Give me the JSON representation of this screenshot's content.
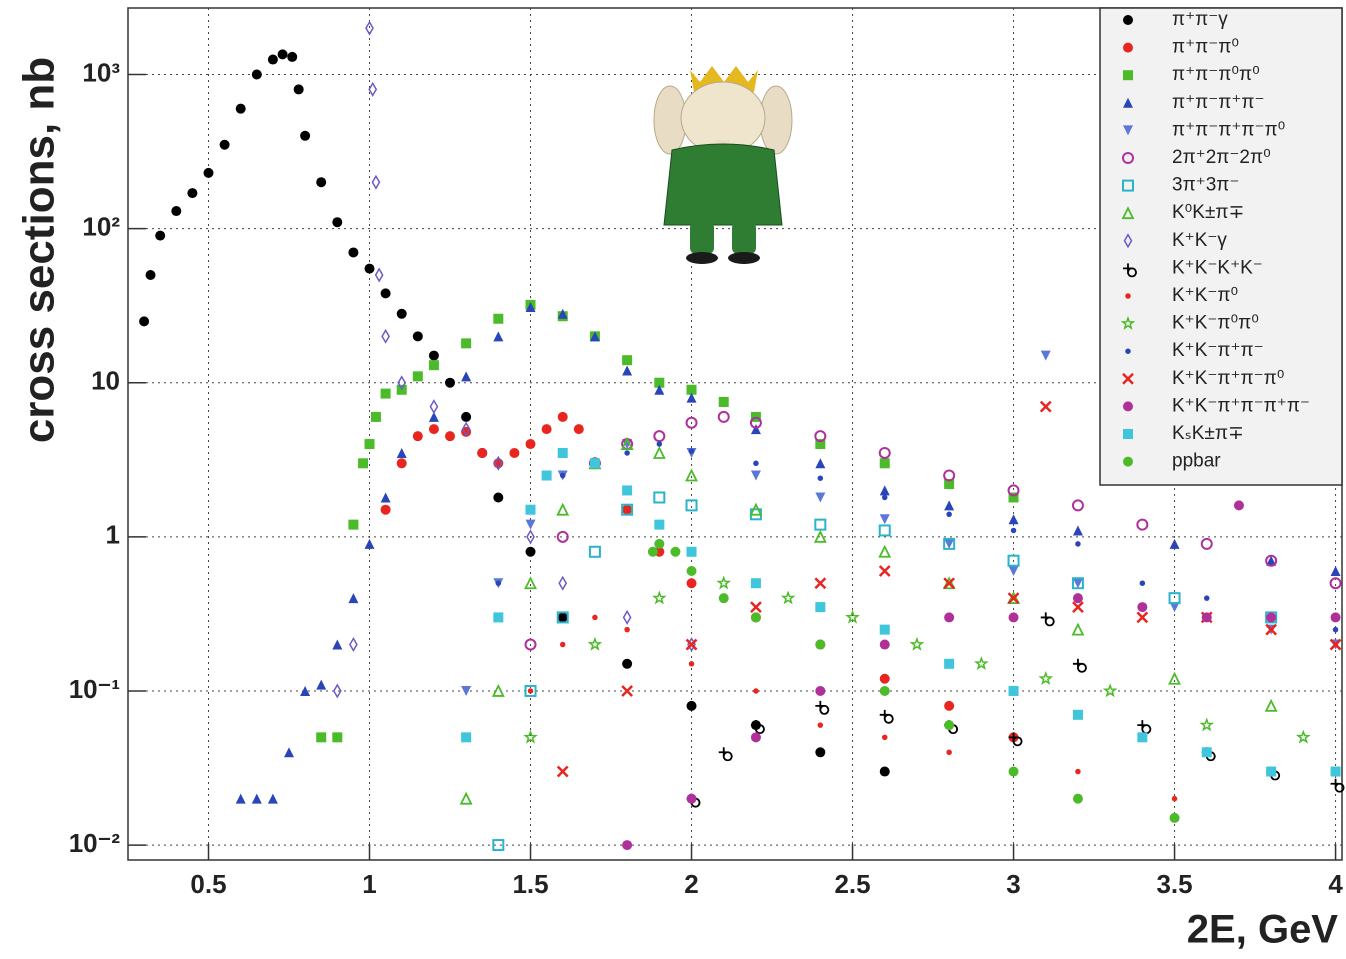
{
  "chart_data": {
    "type": "scatter",
    "x_label": "2E, GeV",
    "y_label": "cross sections, nb",
    "xlim": [
      0.25,
      4.02
    ],
    "ylim": [
      0.008,
      2700
    ],
    "log_y": true,
    "grid": true,
    "legend": "top-right",
    "xticks": [
      0.5,
      1,
      1.5,
      2,
      2.5,
      3,
      3.5,
      4
    ],
    "yticks": [
      {
        "value": 0.01,
        "label": "10⁻²"
      },
      {
        "value": 0.1,
        "label": "10⁻¹"
      },
      1,
      10,
      {
        "value": 100,
        "label": "10²"
      },
      {
        "value": 1000,
        "label": "10³"
      }
    ],
    "series": [
      {
        "name": "π⁺π⁻γ",
        "color": "#000000",
        "marker": "circle",
        "x": [
          0.3,
          0.32,
          0.35,
          0.4,
          0.45,
          0.5,
          0.55,
          0.6,
          0.65,
          0.7,
          0.73,
          0.76,
          0.78,
          0.8,
          0.85,
          0.9,
          0.95,
          1.0,
          1.05,
          1.1,
          1.15,
          1.2,
          1.25,
          1.3,
          1.35,
          1.4,
          1.5,
          1.6,
          1.8,
          2.0,
          2.2,
          2.4,
          2.6
        ],
        "values": [
          25,
          50,
          90,
          130,
          170,
          230,
          350,
          600,
          1000,
          1250,
          1350,
          1300,
          800,
          400,
          200,
          110,
          70,
          55,
          38,
          28,
          20,
          15,
          10,
          6,
          3.5,
          1.8,
          0.8,
          0.3,
          0.15,
          0.08,
          0.06,
          0.04,
          0.03
        ]
      },
      {
        "name": "π⁺π⁻π⁰",
        "color": "#e8251f",
        "marker": "circle",
        "x": [
          1.05,
          1.1,
          1.15,
          1.2,
          1.25,
          1.3,
          1.35,
          1.4,
          1.45,
          1.5,
          1.55,
          1.6,
          1.65,
          1.7,
          1.8,
          1.9,
          2.0,
          2.2,
          2.4,
          2.6,
          2.8,
          3.0
        ],
        "values": [
          1.5,
          3,
          4.5,
          5,
          4.5,
          4.8,
          3.5,
          3,
          3.5,
          4,
          5,
          6,
          5,
          3,
          1.5,
          0.8,
          0.5,
          0.3,
          0.2,
          0.12,
          0.08,
          0.05
        ]
      },
      {
        "name": "π⁺π⁻π⁰π⁰",
        "color": "#4cbb2a",
        "marker": "square",
        "x": [
          0.85,
          0.9,
          0.95,
          0.98,
          1.0,
          1.02,
          1.05,
          1.1,
          1.15,
          1.2,
          1.3,
          1.4,
          1.5,
          1.6,
          1.7,
          1.8,
          1.9,
          2.0,
          2.1,
          2.2,
          2.4,
          2.6,
          2.8,
          3.0
        ],
        "values": [
          0.05,
          0.05,
          1.2,
          3,
          4,
          6,
          8.5,
          9,
          11,
          13,
          18,
          26,
          32,
          27,
          20,
          14,
          10,
          9,
          7.5,
          6,
          4,
          3,
          2.2,
          1.8
        ]
      },
      {
        "name": "π⁺π⁻π⁺π⁻",
        "color": "#2a45b8",
        "marker": "triangle",
        "x": [
          0.6,
          0.65,
          0.7,
          0.75,
          0.8,
          0.85,
          0.9,
          0.95,
          1.0,
          1.05,
          1.1,
          1.2,
          1.3,
          1.4,
          1.5,
          1.6,
          1.7,
          1.8,
          1.9,
          2.0,
          2.2,
          2.4,
          2.6,
          2.8,
          3.0,
          3.2,
          3.5,
          3.8,
          4.0
        ],
        "values": [
          0.02,
          0.02,
          0.02,
          0.04,
          0.1,
          0.11,
          0.2,
          0.4,
          0.9,
          1.8,
          3.5,
          6,
          11,
          20,
          31,
          28,
          20,
          12,
          9,
          8,
          5,
          3,
          2,
          1.6,
          1.3,
          1.1,
          0.9,
          0.7,
          0.6
        ]
      },
      {
        "name": "π⁺π⁻π⁺π⁻π⁰",
        "color": "#5b78d8",
        "marker": "triangle-down",
        "x": [
          1.3,
          1.4,
          1.5,
          1.6,
          1.8,
          2.0,
          2.2,
          2.4,
          2.6,
          2.8,
          3.0,
          3.1,
          3.2,
          3.5,
          3.8,
          4.0
        ],
        "values": [
          0.1,
          0.5,
          1.2,
          2.5,
          4,
          3.5,
          2.5,
          1.8,
          1.3,
          0.9,
          0.6,
          15,
          0.5,
          0.35,
          0.25,
          0.2
        ]
      },
      {
        "name": "2π⁺2π⁻2π⁰",
        "color": "#b0309a",
        "marker": "circle-open",
        "x": [
          1.5,
          1.6,
          1.7,
          1.8,
          1.9,
          2.0,
          2.1,
          2.2,
          2.4,
          2.6,
          2.8,
          3.0,
          3.2,
          3.4,
          3.6,
          3.8,
          4.0
        ],
        "values": [
          0.2,
          1,
          3,
          4,
          4.5,
          5.5,
          6,
          5.5,
          4.5,
          3.5,
          2.5,
          2,
          1.6,
          1.2,
          0.9,
          0.7,
          0.5
        ]
      },
      {
        "name": "3π⁺3π⁻",
        "color": "#2ab3c9",
        "marker": "square-open",
        "x": [
          1.4,
          1.5,
          1.6,
          1.7,
          1.8,
          1.9,
          2.0,
          2.2,
          2.4,
          2.6,
          2.8,
          3.0,
          3.2,
          3.5,
          3.8
        ],
        "values": [
          0.01,
          0.1,
          0.3,
          0.8,
          1.5,
          1.8,
          1.6,
          1.4,
          1.2,
          1.1,
          0.9,
          0.7,
          0.5,
          0.4,
          0.3
        ]
      },
      {
        "name": "K⁰K±π∓",
        "color": "#4cbb2a",
        "marker": "triangle-open",
        "x": [
          1.3,
          1.4,
          1.5,
          1.6,
          1.7,
          1.8,
          1.9,
          2.0,
          2.2,
          2.4,
          2.6,
          2.8,
          3.0,
          3.2,
          3.5,
          3.8
        ],
        "values": [
          0.02,
          0.1,
          0.5,
          1.5,
          3,
          4,
          3.5,
          2.5,
          1.5,
          1,
          0.8,
          0.5,
          0.4,
          0.25,
          0.12,
          0.08
        ]
      },
      {
        "name": "K⁺K⁻γ",
        "color": "#6a5bc8",
        "marker": "diamond-open",
        "x": [
          0.9,
          0.95,
          1.0,
          1.01,
          1.02,
          1.03,
          1.05,
          1.1,
          1.2,
          1.3,
          1.4,
          1.5,
          1.6,
          1.8,
          2.0
        ],
        "values": [
          0.1,
          0.2,
          2000,
          800,
          200,
          50,
          20,
          10,
          7,
          5,
          3,
          1,
          0.5,
          0.3,
          0.2
        ]
      },
      {
        "name": "K⁺K⁻K⁺K⁻",
        "color": "#000000",
        "marker": "cross-open",
        "x": [
          2.0,
          2.1,
          2.2,
          2.4,
          2.6,
          2.8,
          3.0,
          3.1,
          3.2,
          3.4,
          3.6,
          3.8,
          4.0
        ],
        "values": [
          0.02,
          0.04,
          0.06,
          0.08,
          0.07,
          0.06,
          0.05,
          0.3,
          0.15,
          0.06,
          0.04,
          0.03,
          0.025
        ]
      },
      {
        "name": "K⁺K⁻π⁰",
        "color": "#e8251f",
        "marker": "dot",
        "x": [
          1.5,
          1.6,
          1.7,
          1.8,
          2.0,
          2.2,
          2.4,
          2.6,
          2.8,
          3.0,
          3.2,
          3.5
        ],
        "values": [
          0.1,
          0.2,
          0.3,
          0.25,
          0.15,
          0.1,
          0.06,
          0.05,
          0.04,
          0.03,
          0.03,
          0.02
        ]
      },
      {
        "name": "K⁺K⁻π⁰π⁰",
        "color": "#4cbb2a",
        "marker": "star",
        "x": [
          1.5,
          1.7,
          1.9,
          2.1,
          2.3,
          2.5,
          2.7,
          2.9,
          3.1,
          3.3,
          3.6,
          3.9
        ],
        "values": [
          0.05,
          0.2,
          0.4,
          0.5,
          0.4,
          0.3,
          0.2,
          0.15,
          0.12,
          0.1,
          0.06,
          0.05
        ]
      },
      {
        "name": "K⁺K⁻π⁺π⁻",
        "color": "#2a45b8",
        "marker": "dot",
        "x": [
          1.4,
          1.5,
          1.6,
          1.7,
          1.8,
          1.9,
          2.0,
          2.2,
          2.4,
          2.6,
          2.8,
          3.0,
          3.2,
          3.4,
          3.6,
          3.8,
          4.0
        ],
        "values": [
          0.5,
          1.5,
          2.5,
          3,
          3.5,
          4,
          3.6,
          3,
          2.4,
          1.8,
          1.4,
          1.1,
          0.9,
          0.5,
          0.4,
          0.3,
          0.25
        ]
      },
      {
        "name": "K⁺K⁻π⁺π⁻π⁰",
        "color": "#e8251f",
        "marker": "x",
        "x": [
          1.6,
          1.8,
          2.0,
          2.2,
          2.4,
          2.6,
          2.8,
          3.0,
          3.1,
          3.2,
          3.4,
          3.6,
          3.8,
          4.0
        ],
        "values": [
          0.03,
          0.1,
          0.2,
          0.35,
          0.5,
          0.6,
          0.5,
          0.4,
          7,
          0.35,
          0.3,
          0.3,
          0.25,
          0.2
        ]
      },
      {
        "name": "K⁺K⁻π⁺π⁻π⁺π⁻",
        "color": "#b0309a",
        "marker": "circle",
        "x": [
          1.8,
          2.0,
          2.2,
          2.4,
          2.6,
          2.8,
          3.0,
          3.2,
          3.4,
          3.6,
          3.7,
          3.8,
          4.0
        ],
        "values": [
          0.01,
          0.02,
          0.05,
          0.1,
          0.2,
          0.3,
          0.3,
          0.4,
          0.35,
          0.3,
          1.6,
          0.3,
          0.3
        ]
      },
      {
        "name": "KₛK±π∓",
        "color": "#3fc6dc",
        "marker": "square",
        "x": [
          1.3,
          1.4,
          1.5,
          1.55,
          1.6,
          1.7,
          1.8,
          1.9,
          2.0,
          2.2,
          2.4,
          2.6,
          2.8,
          3.0,
          3.2,
          3.4,
          3.6,
          3.8,
          4.0
        ],
        "values": [
          0.05,
          0.3,
          1.5,
          2.5,
          3.5,
          3,
          2,
          1.2,
          0.8,
          0.5,
          0.35,
          0.25,
          0.15,
          0.1,
          0.07,
          0.05,
          0.04,
          0.03,
          0.03
        ]
      },
      {
        "name": "ppbar",
        "color": "#4cbb2a",
        "marker": "circle",
        "x": [
          1.88,
          1.9,
          1.95,
          2.0,
          2.1,
          2.2,
          2.4,
          2.6,
          2.8,
          3.0,
          3.2,
          3.5
        ],
        "values": [
          0.8,
          0.9,
          0.8,
          0.6,
          0.4,
          0.3,
          0.2,
          0.1,
          0.06,
          0.03,
          0.02,
          0.015
        ]
      }
    ]
  }
}
